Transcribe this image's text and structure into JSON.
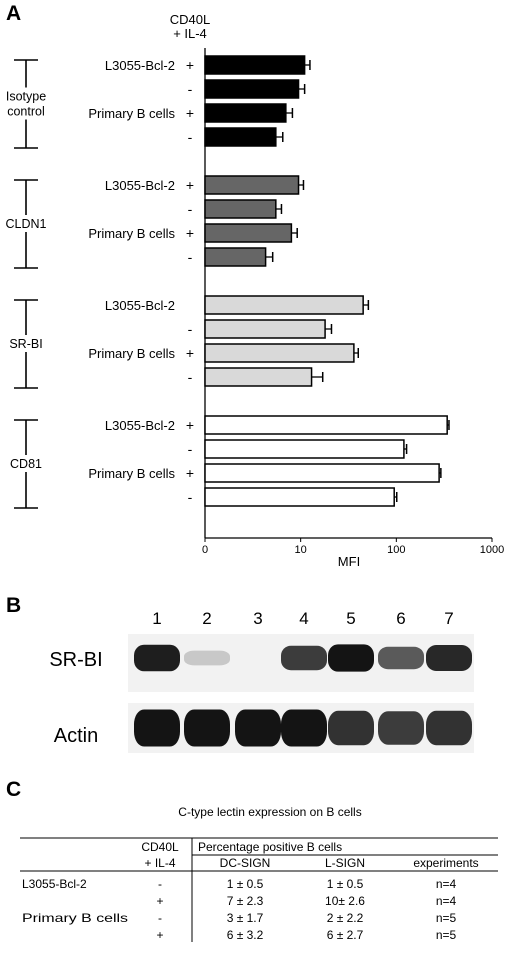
{
  "panels": {
    "a": "A",
    "b": "B",
    "c": "C"
  },
  "chart_data": {
    "type": "bar",
    "orientation": "horizontal",
    "stim_header": [
      "CD40L",
      "+ IL-4"
    ],
    "xlabel": "MFI",
    "xscale": "log",
    "xlim": [
      1,
      1000
    ],
    "xticks": [
      "0",
      "10",
      "100",
      "1000"
    ],
    "groups": [
      {
        "label": [
          "Isotype",
          "control"
        ],
        "color": "#000000",
        "bars": [
          {
            "cell": "L3055-Bcl-2",
            "stim": "+",
            "value": 11,
            "err": 1.5
          },
          {
            "cell": "",
            "stim": "-",
            "value": 9.5,
            "err": 1.5
          },
          {
            "cell": "Primary B cells",
            "stim": "+",
            "value": 7,
            "err": 1.2
          },
          {
            "cell": "",
            "stim": "-",
            "value": 5.5,
            "err": 1.0
          }
        ]
      },
      {
        "label": [
          "CLDN1"
        ],
        "color": "#666666",
        "bars": [
          {
            "cell": "L3055-Bcl-2",
            "stim": "+",
            "value": 9.5,
            "err": 1.2
          },
          {
            "cell": "",
            "stim": "-",
            "value": 5.5,
            "err": 0.8
          },
          {
            "cell": "Primary B cells",
            "stim": "+",
            "value": 8,
            "err": 1.2
          },
          {
            "cell": "",
            "stim": "-",
            "value": 4.3,
            "err": 0.8
          }
        ]
      },
      {
        "label": [
          "SR-BI"
        ],
        "color": "#d9d9d9",
        "bars": [
          {
            "cell": "L3055-Bcl-2",
            "stim": "",
            "value": 45,
            "err": 6
          },
          {
            "cell": "",
            "stim": "-",
            "value": 18,
            "err": 3
          },
          {
            "cell": "Primary B cells",
            "stim": "+",
            "value": 36,
            "err": 4
          },
          {
            "cell": "",
            "stim": "-",
            "value": 13,
            "err": 4
          }
        ]
      },
      {
        "label": [
          "CD81"
        ],
        "color": "#ffffff",
        "bars": [
          {
            "cell": "L3055-Bcl-2",
            "stim": "+",
            "value": 340,
            "err": 15
          },
          {
            "cell": "",
            "stim": "-",
            "value": 120,
            "err": 8
          },
          {
            "cell": "Primary B cells",
            "stim": "+",
            "value": 280,
            "err": 12
          },
          {
            "cell": "",
            "stim": "-",
            "value": 95,
            "err": 6
          }
        ]
      }
    ]
  },
  "western": {
    "lanes": [
      "1",
      "2",
      "3",
      "4",
      "5",
      "6",
      "7"
    ],
    "rows": [
      {
        "label": "SR-BI",
        "intensity": [
          0.9,
          0.05,
          0.0,
          0.75,
          0.95,
          0.6,
          0.85
        ]
      },
      {
        "label": "Actin",
        "intensity": [
          0.95,
          0.95,
          0.95,
          0.95,
          0.8,
          0.75,
          0.8
        ]
      }
    ]
  },
  "table": {
    "title": "C-type lectin expression on B cells",
    "head1": [
      "CD40L",
      "Percentage positive B cells"
    ],
    "head2": [
      "+ IL-4",
      "DC-SIGN",
      "L-SIGN",
      "experiments"
    ],
    "rows": [
      {
        "cell": "L3055-Bcl-2",
        "stim": "-",
        "dc": "1 ± 0.5",
        "l": "1 ± 0.5",
        "n": "n=4"
      },
      {
        "cell": "",
        "stim": "+",
        "dc": "7 ± 2.3",
        "l": "10± 2.6",
        "n": "n=4"
      },
      {
        "cell": "Primary B cells",
        "stim": "-",
        "dc": "3 ± 1.7",
        "l": "2 ± 2.2",
        "n": "n=5"
      },
      {
        "cell": "",
        "stim": "+",
        "dc": "6 ± 3.2",
        "l": "6 ± 2.7",
        "n": "n=5"
      }
    ]
  }
}
